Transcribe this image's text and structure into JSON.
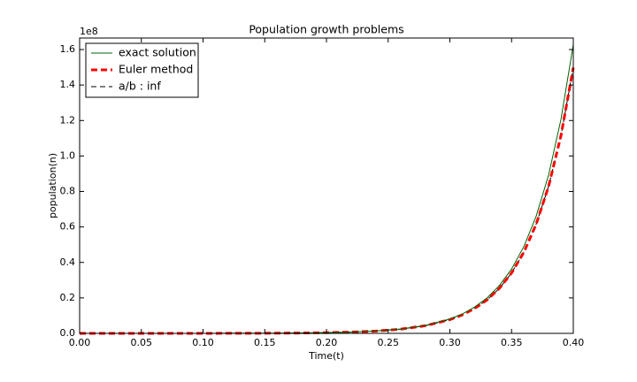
{
  "chart_data": {
    "type": "line",
    "title": "Population growth problems",
    "xlabel": "Time(t)",
    "ylabel": "population(n)",
    "y_offset_label": "1e8",
    "x": [
      0,
      0.02,
      0.04,
      0.06,
      0.08,
      0.1,
      0.12,
      0.14,
      0.16,
      0.18,
      0.2,
      0.22,
      0.24,
      0.26,
      0.28,
      0.3,
      0.31,
      0.32,
      0.33,
      0.34,
      0.35,
      0.36,
      0.37,
      0.38,
      0.39,
      0.4
    ],
    "series": [
      {
        "name": "exact solution",
        "color": "#006400",
        "style": "solid",
        "values": [
          1e-05,
          1.82e-05,
          3.32e-05,
          6.05e-05,
          0.00011,
          0.0002,
          0.00037,
          0.00067,
          0.0012,
          0.0022,
          0.004,
          0.0074,
          0.0134,
          0.0244,
          0.0445,
          0.081,
          0.109,
          0.148,
          0.199,
          0.269,
          0.363,
          0.49,
          0.662,
          0.893,
          1.206,
          1.628
        ]
      },
      {
        "name": "Euler method",
        "color": "#ff0000",
        "style": "dashed-thick",
        "values": [
          1e-05,
          1.82e-05,
          3.32e-05,
          6.05e-05,
          0.00011,
          0.0002,
          0.00037,
          0.00067,
          0.0012,
          0.0022,
          0.0039,
          0.0072,
          0.013,
          0.0236,
          0.0428,
          0.0774,
          0.104,
          0.14,
          0.188,
          0.253,
          0.341,
          0.458,
          0.617,
          0.829,
          1.114,
          1.498
        ]
      },
      {
        "name": "a/b : inf",
        "color": "#000000",
        "style": "dashed",
        "values": [
          1e-05,
          1.82e-05,
          3.32e-05,
          6.05e-05,
          0.00011,
          0.0002,
          0.00037,
          0.00067,
          0.0012,
          0.0022,
          0.0039,
          0.0072,
          0.013,
          0.0236,
          0.0428,
          0.0774,
          0.104,
          0.14,
          0.188,
          0.253,
          0.341,
          0.458,
          0.617,
          0.829,
          1.114,
          1.498
        ]
      }
    ],
    "xlim": [
      0,
      0.4
    ],
    "ylim": [
      0,
      1.665
    ],
    "xticks": [
      {
        "value": 0,
        "label": "0.00"
      },
      {
        "value": 0.05,
        "label": "0.05"
      },
      {
        "value": 0.1,
        "label": "0.10"
      },
      {
        "value": 0.15,
        "label": "0.15"
      },
      {
        "value": 0.2,
        "label": "0.20"
      },
      {
        "value": 0.25,
        "label": "0.25"
      },
      {
        "value": 0.3,
        "label": "0.30"
      },
      {
        "value": 0.35,
        "label": "0.35"
      },
      {
        "value": 0.4,
        "label": "0.40"
      }
    ],
    "yticks": [
      {
        "value": 0,
        "label": "0.0"
      },
      0.2,
      0.4,
      0.6,
      0.8,
      {
        "value": 1,
        "label": "1.0"
      },
      1.2,
      1.4,
      1.6
    ],
    "legend": "upper left",
    "grid": false
  }
}
